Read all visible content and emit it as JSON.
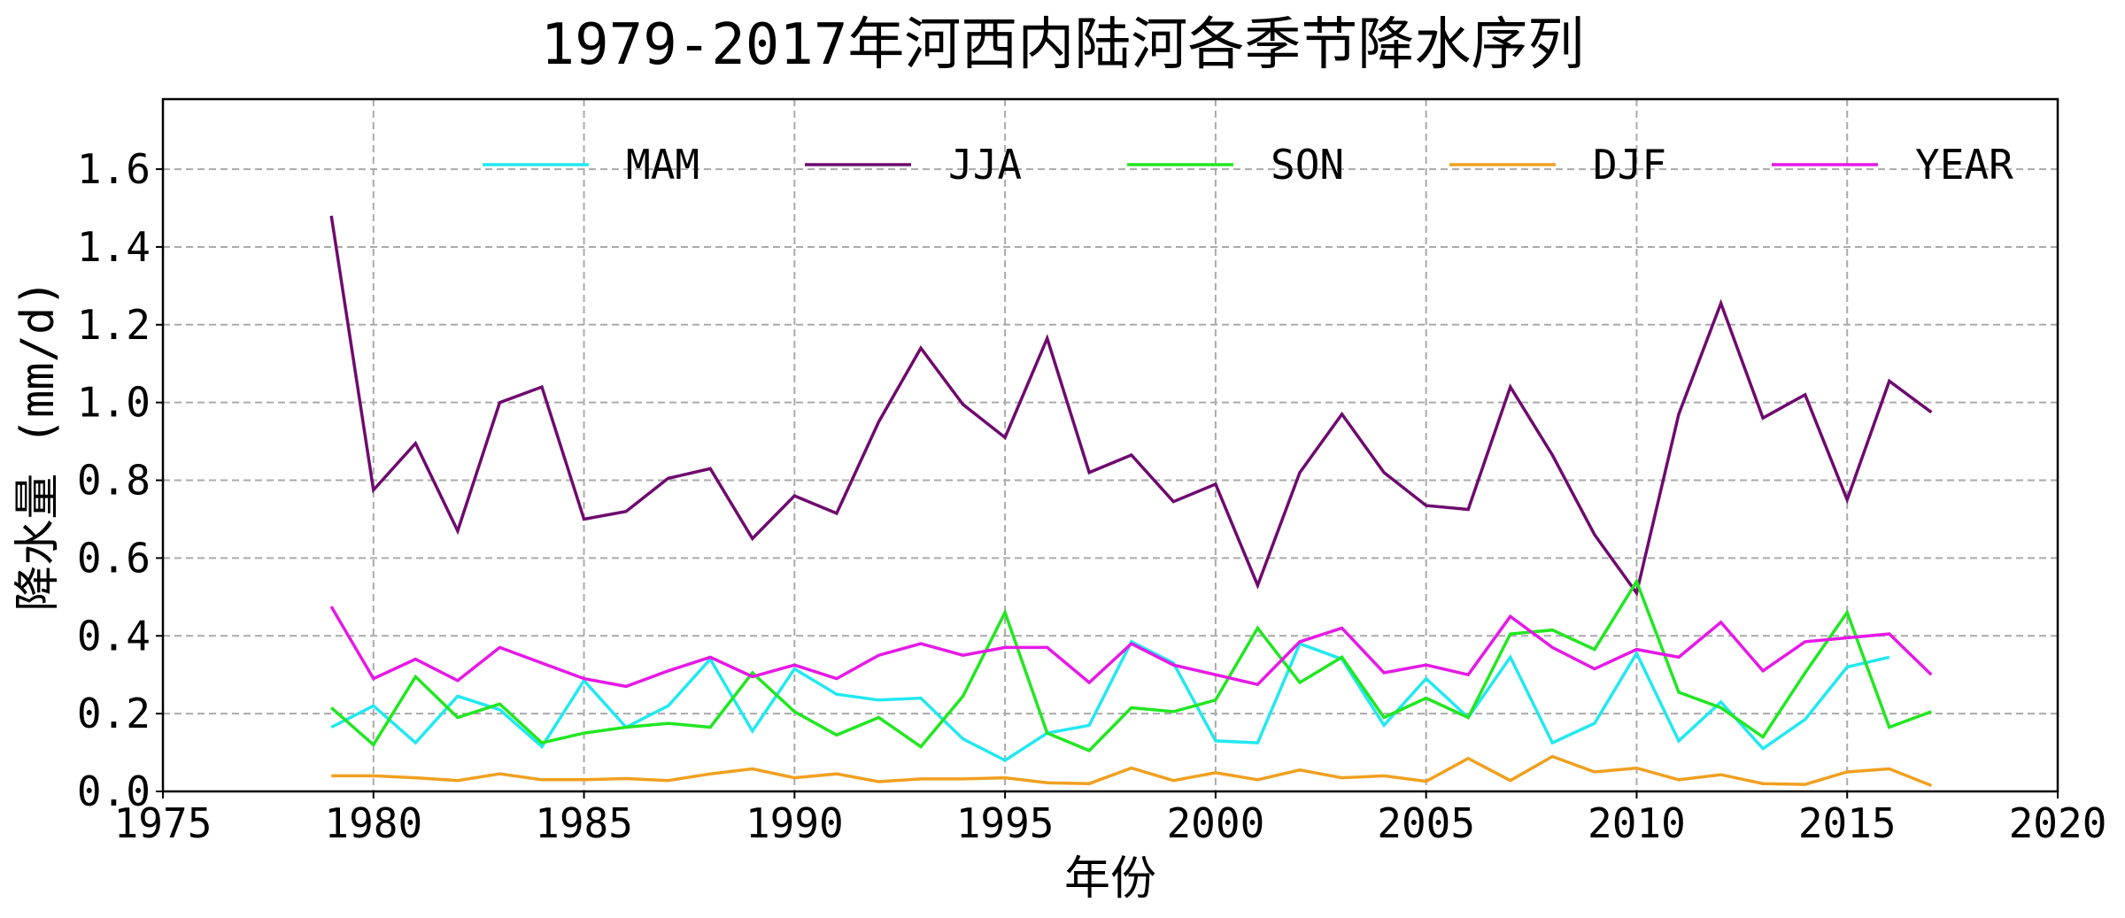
{
  "chart_data": {
    "type": "line",
    "title": "1979-2017年河西内陆河各季节降水序列",
    "xlabel": "年份",
    "ylabel": "降水量 (mm/d)",
    "xlim": [
      1975,
      2020
    ],
    "ylim": [
      0,
      1.78
    ],
    "xticks": [
      1975,
      1980,
      1985,
      1990,
      1995,
      2000,
      2005,
      2010,
      2015,
      2020
    ],
    "yticks": [
      0.0,
      0.2,
      0.4,
      0.6,
      0.8,
      1.0,
      1.2,
      1.4,
      1.6
    ],
    "ytick_labels": [
      "0.0",
      "0.2",
      "0.4",
      "0.6",
      "0.8",
      "1.0",
      "1.2",
      "1.4",
      "1.6"
    ],
    "grid": true,
    "legend_position": "top",
    "x": [
      1979,
      1980,
      1981,
      1982,
      1983,
      1984,
      1985,
      1986,
      1987,
      1988,
      1989,
      1990,
      1991,
      1992,
      1993,
      1994,
      1995,
      1996,
      1997,
      1998,
      1999,
      2000,
      2001,
      2002,
      2003,
      2004,
      2005,
      2006,
      2007,
      2008,
      2009,
      2010,
      2011,
      2012,
      2013,
      2014,
      2015,
      2016,
      2017
    ],
    "series": [
      {
        "name": "MAM",
        "color": "#22e8f0",
        "values": [
          0.165,
          0.22,
          0.125,
          0.245,
          0.21,
          0.115,
          0.285,
          0.165,
          0.22,
          0.34,
          0.155,
          0.315,
          0.25,
          0.235,
          0.24,
          0.135,
          0.08,
          0.15,
          0.17,
          0.385,
          0.33,
          0.13,
          0.125,
          0.38,
          0.34,
          0.17,
          0.29,
          0.19,
          0.345,
          0.125,
          0.175,
          0.355,
          0.13,
          0.23,
          0.11,
          0.185,
          0.32,
          0.345,
          null
        ]
      },
      {
        "name": "JJA",
        "color": "#6e0a6e",
        "values": [
          1.48,
          0.775,
          0.895,
          0.67,
          1.0,
          1.04,
          0.7,
          0.72,
          0.805,
          0.83,
          0.65,
          0.76,
          0.715,
          0.95,
          1.14,
          0.995,
          0.91,
          1.165,
          0.82,
          0.865,
          0.745,
          0.79,
          0.53,
          0.82,
          0.97,
          0.82,
          0.735,
          0.725,
          1.04,
          0.865,
          0.66,
          0.51,
          0.97,
          1.255,
          0.96,
          1.02,
          0.75,
          1.055,
          0.975
        ]
      },
      {
        "name": "SON",
        "color": "#22e622",
        "values": [
          0.215,
          0.12,
          0.295,
          0.19,
          0.225,
          0.125,
          0.15,
          0.165,
          0.175,
          0.165,
          0.305,
          0.205,
          0.145,
          0.19,
          0.115,
          0.245,
          0.46,
          0.15,
          0.105,
          0.215,
          0.205,
          0.235,
          0.42,
          0.28,
          0.345,
          0.19,
          0.24,
          0.19,
          0.405,
          0.415,
          0.365,
          0.54,
          0.255,
          0.215,
          0.14,
          0.305,
          0.46,
          0.165,
          0.205
        ]
      },
      {
        "name": "DJF",
        "color": "#f0a020",
        "values": [
          0.04,
          0.04,
          0.035,
          0.028,
          0.045,
          0.03,
          0.03,
          0.033,
          0.028,
          0.045,
          0.058,
          0.035,
          0.045,
          0.025,
          0.032,
          0.032,
          0.035,
          0.022,
          0.02,
          0.06,
          0.028,
          0.048,
          0.03,
          0.055,
          0.035,
          0.04,
          0.026,
          0.085,
          0.028,
          0.09,
          0.05,
          0.06,
          0.03,
          0.043,
          0.02,
          0.018,
          0.05,
          0.058,
          0.015
        ]
      },
      {
        "name": "YEAR",
        "color": "#e619e6",
        "values": [
          0.475,
          0.29,
          0.34,
          0.285,
          0.37,
          0.33,
          0.29,
          0.27,
          0.31,
          0.345,
          0.295,
          0.325,
          0.29,
          0.35,
          0.38,
          0.35,
          0.37,
          0.37,
          0.28,
          0.38,
          0.325,
          0.3,
          0.275,
          0.385,
          0.42,
          0.305,
          0.325,
          0.3,
          0.45,
          0.37,
          0.315,
          0.365,
          0.345,
          0.435,
          0.31,
          0.385,
          0.395,
          0.405,
          0.3
        ]
      }
    ]
  }
}
